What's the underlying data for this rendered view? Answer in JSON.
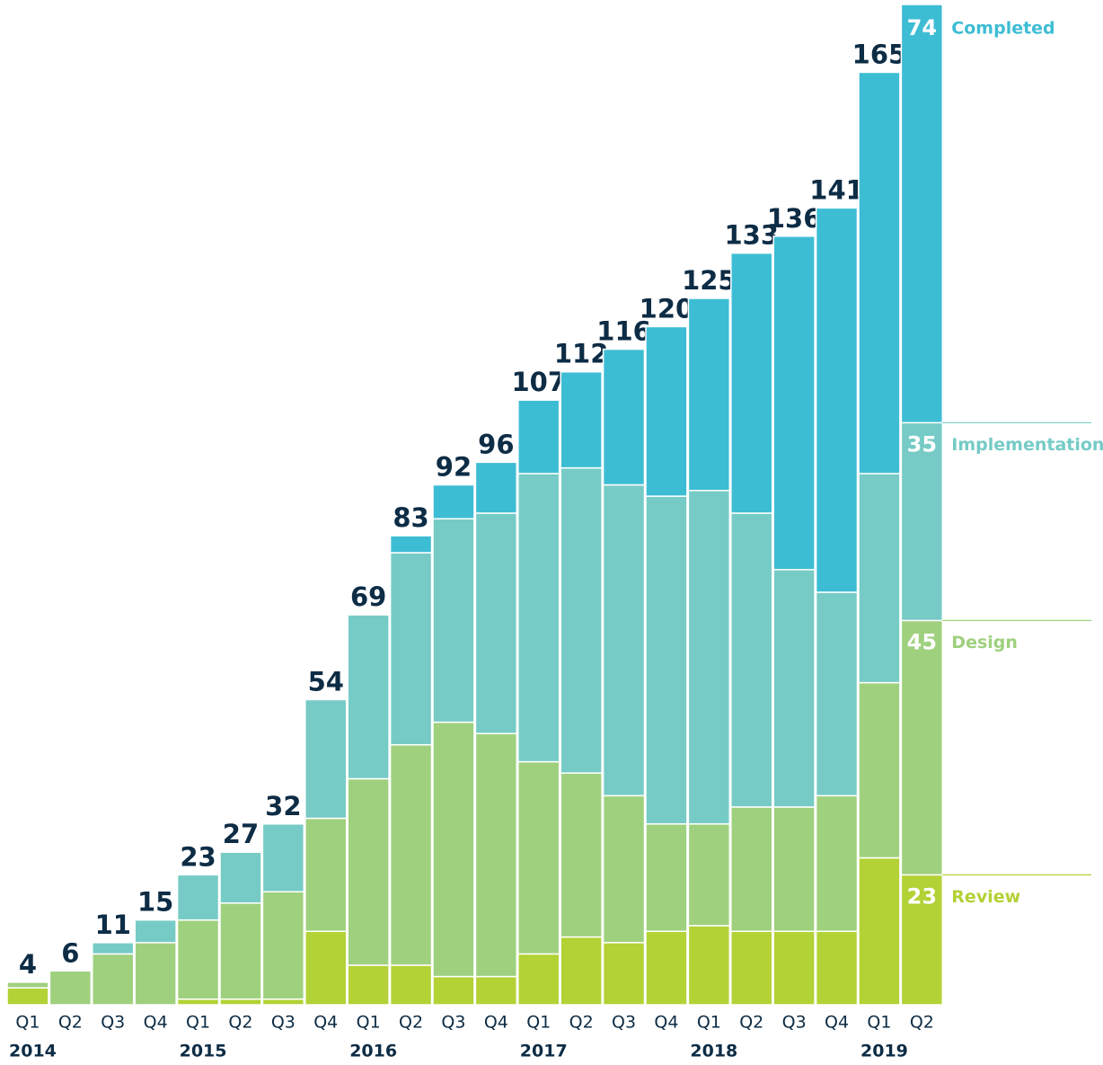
{
  "chart_data": {
    "type": "stacked_bar",
    "categories": [
      "Q1",
      "Q2",
      "Q3",
      "Q4",
      "Q1",
      "Q2",
      "Q3",
      "Q4",
      "Q1",
      "Q2",
      "Q3",
      "Q4",
      "Q1",
      "Q2",
      "Q3",
      "Q4",
      "Q1",
      "Q2",
      "Q3",
      "Q4",
      "Q1",
      "Q2"
    ],
    "years": [
      "2014",
      null,
      null,
      null,
      "2015",
      null,
      null,
      null,
      "2016",
      null,
      null,
      null,
      "2017",
      null,
      null,
      null,
      "2018",
      null,
      null,
      null,
      "2019",
      null
    ],
    "series": [
      {
        "name": "Review",
        "color": "#b2d235",
        "values": [
          3,
          0,
          0,
          0,
          1,
          1,
          1,
          13,
          7,
          7,
          5,
          5,
          9,
          12,
          11,
          13,
          14,
          13,
          13,
          13,
          26,
          23
        ]
      },
      {
        "name": "Design",
        "color": "#9fd07e",
        "values": [
          1,
          6,
          9,
          11,
          14,
          17,
          19,
          20,
          33,
          39,
          45,
          43,
          34,
          29,
          26,
          19,
          18,
          22,
          22,
          24,
          31,
          45
        ]
      },
      {
        "name": "Implementation",
        "color": "#76cbc6",
        "values": [
          0,
          0,
          2,
          4,
          8,
          9,
          12,
          21,
          29,
          34,
          36,
          39,
          51,
          54,
          55,
          58,
          59,
          52,
          42,
          36,
          37,
          35
        ]
      },
      {
        "name": "Completed",
        "color": "#3dbdd4",
        "values": [
          0,
          0,
          0,
          0,
          0,
          0,
          0,
          0,
          0,
          3,
          6,
          9,
          13,
          17,
          24,
          30,
          34,
          46,
          59,
          68,
          71,
          74
        ]
      }
    ],
    "totals": [
      4,
      6,
      11,
      15,
      23,
      27,
      32,
      54,
      69,
      83,
      92,
      96,
      107,
      112,
      116,
      120,
      125,
      133,
      136,
      141,
      165,
      null
    ],
    "ylim": [
      0,
      177
    ]
  }
}
